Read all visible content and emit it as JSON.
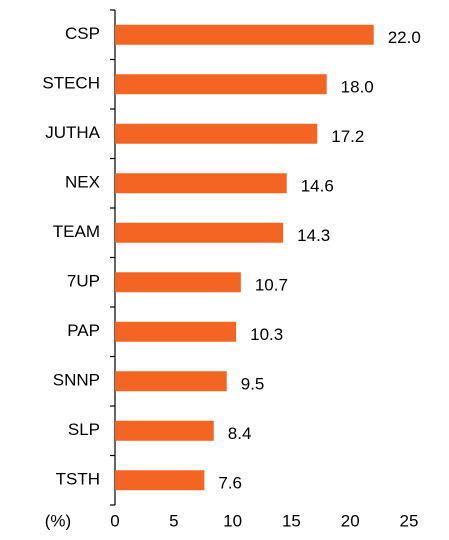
{
  "chart_data": {
    "type": "bar",
    "orientation": "horizontal",
    "categories": [
      "CSP",
      "STECH",
      "JUTHA",
      "NEX",
      "TEAM",
      "7UP",
      "PAP",
      "SNNP",
      "SLP",
      "TSTH"
    ],
    "values": [
      22.0,
      18.0,
      17.2,
      14.6,
      14.3,
      10.7,
      10.3,
      9.5,
      8.4,
      7.6
    ],
    "value_labels": [
      "22.0",
      "18.0",
      "17.2",
      "14.6",
      "14.3",
      "10.7",
      "10.3",
      "9.5",
      "8.4",
      "7.6"
    ],
    "color": "#f26522",
    "xlabel": "(%)",
    "xlim": [
      0,
      25
    ],
    "xticks": [
      0,
      5,
      10,
      15,
      20,
      25
    ],
    "grid": false
  }
}
